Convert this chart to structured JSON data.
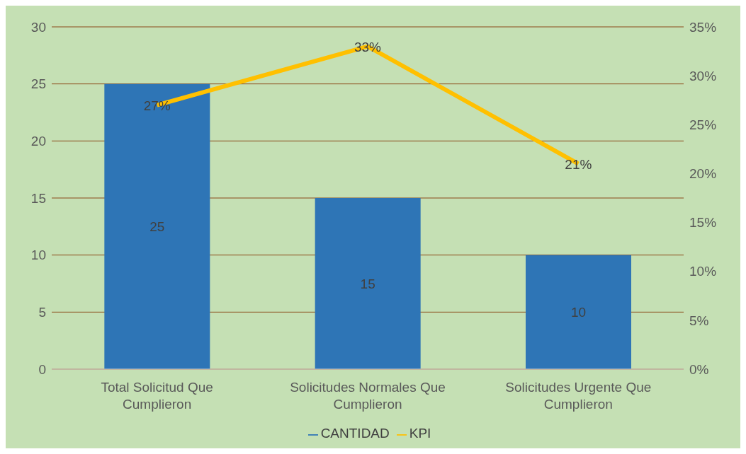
{
  "chart_data": {
    "type": "bar",
    "categories": [
      "Total Solicitud Que Cumplieron",
      "Solicitudes Normales Que Cumplieron",
      "Solicitudes Urgente Que Cumplieron"
    ],
    "series": [
      {
        "name": "CANTIDAD",
        "color": "#2e75b6",
        "values": [
          25,
          15,
          10
        ],
        "value_labels": [
          "25",
          "15",
          "10"
        ]
      },
      {
        "name": "KPI",
        "type": "line",
        "axis": "y2",
        "color": "#ffc000",
        "values": [
          27,
          33,
          21
        ],
        "value_labels": [
          "27%",
          "33%",
          "21%"
        ]
      }
    ],
    "ylim": [
      0,
      30
    ],
    "yticks": [
      0,
      5,
      10,
      15,
      20,
      25,
      30
    ],
    "y2lim": [
      0,
      35
    ],
    "y2ticks": [
      {
        "value": 0,
        "label": "0%"
      },
      {
        "value": 5,
        "label": "5%"
      },
      {
        "value": 10,
        "label": "10%"
      },
      {
        "value": 15,
        "label": "15%"
      },
      {
        "value": 20,
        "label": "20%"
      },
      {
        "value": 25,
        "label": "25%"
      },
      {
        "value": 30,
        "label": "30%"
      },
      {
        "value": 35,
        "label": "35%"
      }
    ],
    "grid": "y",
    "legend": "bottom",
    "marker": "none",
    "line_style": "solid"
  }
}
